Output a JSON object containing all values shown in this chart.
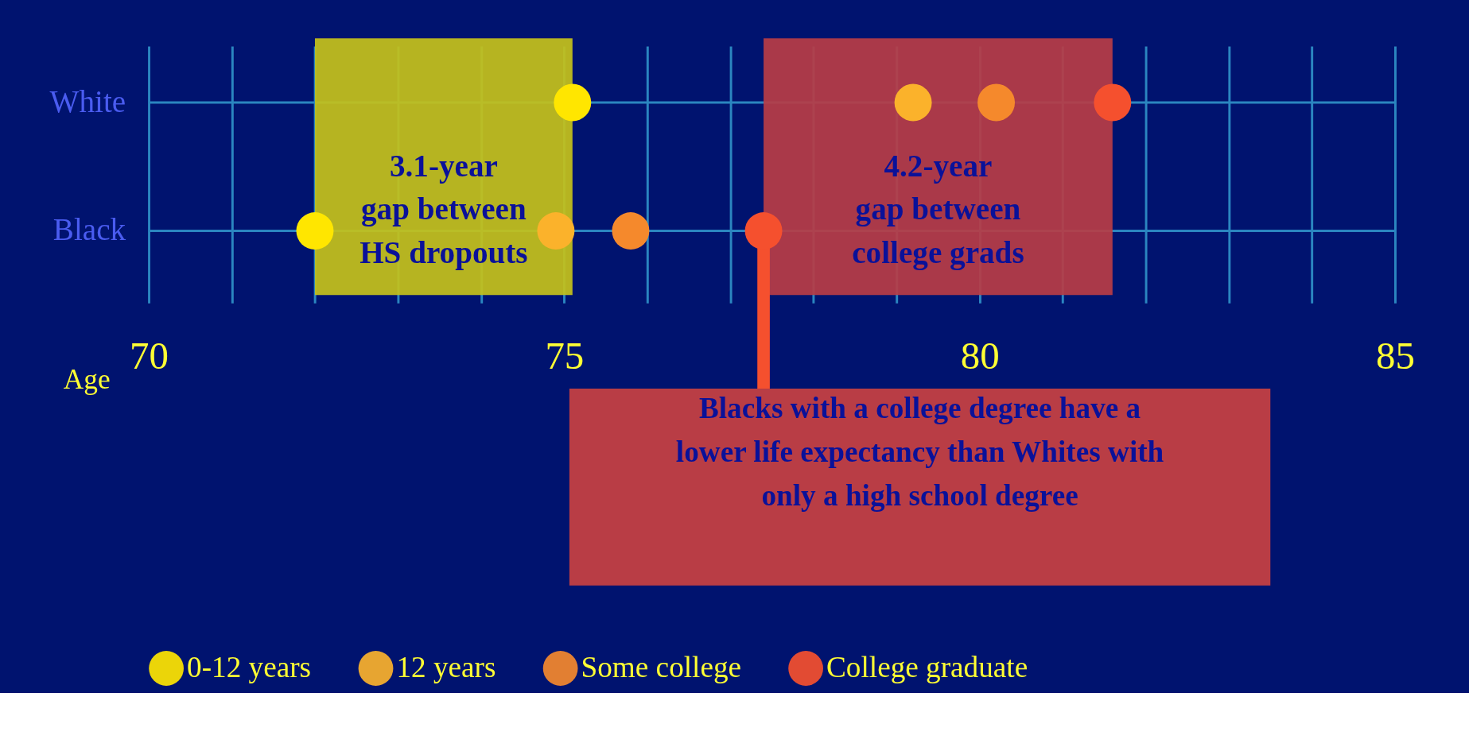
{
  "chart_data": {
    "type": "scatter",
    "orientation": "horizontal",
    "xlabel": "Age",
    "categories": [
      "White",
      "Black"
    ],
    "series": [
      {
        "name": "0-12 years",
        "color": "#ffe600",
        "values": [
          75.1,
          72.0
        ]
      },
      {
        "name": "12 years",
        "color": "#fbb22b",
        "values": [
          79.2,
          74.9
        ]
      },
      {
        "name": "Some college",
        "color": "#f5892c",
        "values": [
          80.2,
          75.8
        ]
      },
      {
        "name": "College graduate",
        "color": "#f5502e",
        "values": [
          81.6,
          77.4
        ]
      }
    ],
    "xlim": [
      70,
      85
    ],
    "xticks": [
      70,
      {
        "value": 71,
        "label": null
      },
      {
        "value": 72,
        "label": null
      },
      {
        "value": 73,
        "label": null
      },
      {
        "value": 74,
        "label": null
      },
      75,
      {
        "value": 76,
        "label": null
      },
      {
        "value": 77,
        "label": null
      },
      {
        "value": 78,
        "label": null
      },
      {
        "value": 79,
        "label": null
      },
      80,
      {
        "value": 81,
        "label": null
      },
      {
        "value": 82,
        "label": null
      },
      {
        "value": 83,
        "label": null
      },
      {
        "value": 84,
        "label": null
      },
      85
    ],
    "bands": [
      {
        "axis": "x",
        "from": 72.0,
        "to": 75.1,
        "label": "3.1-year\ngap between\nHS dropouts",
        "color": "#c6c21a"
      },
      {
        "axis": "x",
        "from": 77.4,
        "to": 81.6,
        "label": "4.2-year\ngap between\ncollege grads",
        "color": "#b93d45"
      }
    ],
    "annotations": [
      {
        "text": "Blacks with a college degree have a\nlower life expectancy than Whites with\nonly a high school degree",
        "x": 77.4,
        "y": "Black"
      }
    ],
    "grid": true,
    "legend": "bottom",
    "marker": "circle"
  }
}
